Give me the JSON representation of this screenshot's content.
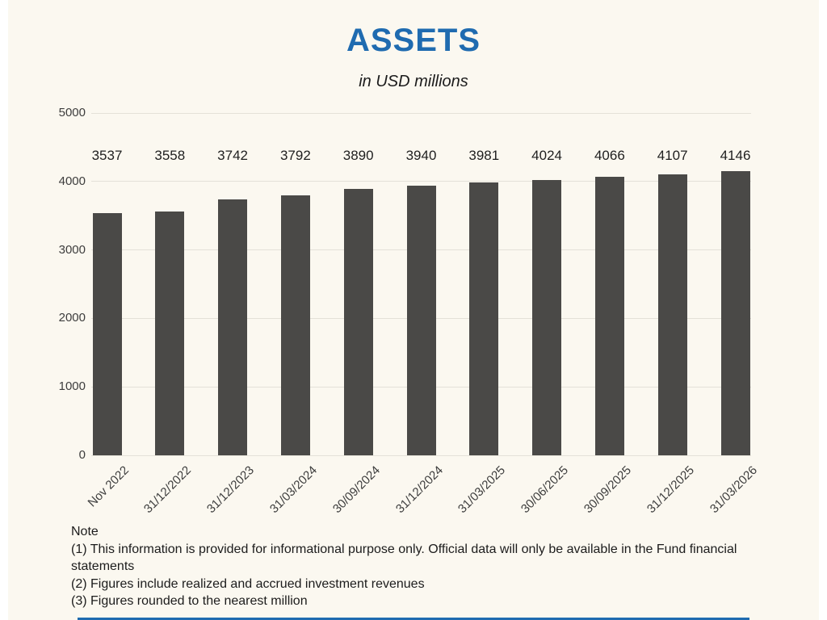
{
  "page": {
    "title": "ASSETS",
    "subtitle": "in USD millions"
  },
  "chart_data": {
    "type": "bar",
    "title": "ASSETS",
    "subtitle": "in USD millions",
    "categories": [
      "Nov 2022",
      "31/12/2022",
      "31/12/2023",
      "31/03/2024",
      "30/09/2024",
      "31/12/2024",
      "31/03/2025",
      "30/06/2025",
      "30/09/2025",
      "31/12/2025",
      "31/03/2026"
    ],
    "values": [
      3537,
      3558,
      3742,
      3792,
      3890,
      3940,
      3981,
      4024,
      4066,
      4107,
      4146
    ],
    "xlabel": "",
    "ylabel": "",
    "ylim": [
      0,
      5000
    ],
    "yticks": [
      0,
      1000,
      2000,
      3000,
      4000,
      5000
    ],
    "grid": true,
    "legend": false,
    "value_labels": true
  },
  "note": {
    "heading": "Note",
    "lines": [
      "(1) This information is provided for informational purpose only. Official data will only be available in the Fund financial statements",
      "(2) Figures include realized and accrued investment revenues",
      "(3) Figures rounded to the nearest million"
    ]
  },
  "colors": {
    "accent_blue": "#1f6bb0",
    "background": "#fbf8f0",
    "bar": "#4a4947",
    "gridline": "#e4e1d8"
  }
}
